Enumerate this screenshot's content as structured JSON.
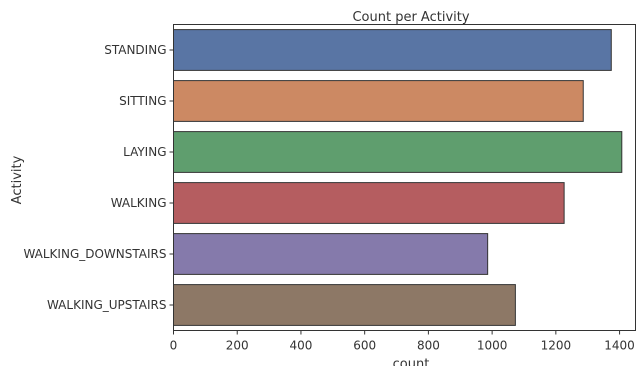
{
  "chart_data": {
    "type": "bar",
    "orientation": "horizontal",
    "title": "Count per Activity",
    "xlabel": "count",
    "ylabel": "Activity",
    "categories": [
      "STANDING",
      "SITTING",
      "LAYING",
      "WALKING",
      "WALKING_DOWNSTAIRS",
      "WALKING_UPSTAIRS"
    ],
    "values": [
      1374,
      1286,
      1407,
      1226,
      986,
      1073
    ],
    "colors": [
      "#5975a4",
      "#cc8963",
      "#5f9e6e",
      "#b55d60",
      "#857aab",
      "#8d7866"
    ],
    "xlim": [
      0,
      1450
    ],
    "xticks": [
      0,
      200,
      400,
      600,
      800,
      1000,
      1200,
      1400
    ],
    "grid": false,
    "legend": "none"
  }
}
